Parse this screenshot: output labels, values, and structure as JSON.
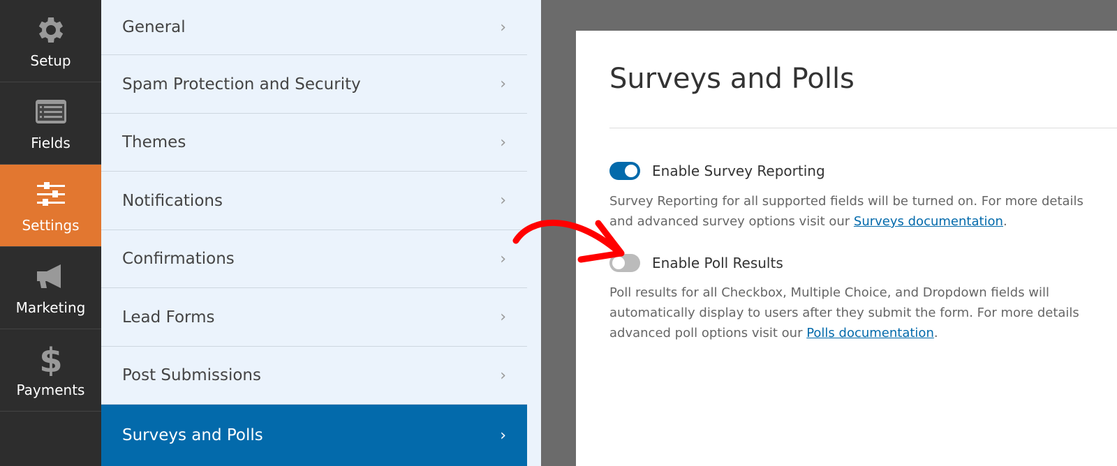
{
  "sidebar": {
    "items": [
      {
        "label": "Setup",
        "icon": "gear-icon"
      },
      {
        "label": "Fields",
        "icon": "list-icon"
      },
      {
        "label": "Settings",
        "icon": "sliders-icon",
        "active": true
      },
      {
        "label": "Marketing",
        "icon": "megaphone-icon"
      },
      {
        "label": "Payments",
        "icon": "dollar-icon"
      }
    ]
  },
  "menu": {
    "items": [
      "General",
      "Spam Protection and Security",
      "Themes",
      "Notifications",
      "Confirmations",
      "Lead Forms",
      "Post Submissions",
      "Surveys and Polls"
    ],
    "active": "Surveys and Polls"
  },
  "panel": {
    "title": "Surveys and Polls",
    "survey": {
      "label": "Enable Survey Reporting",
      "enabled": true,
      "desc": "Survey Reporting for all supported fields will be turned on. For more details and advanced survey options visit our ",
      "link": "Surveys documentation",
      "end": "."
    },
    "poll": {
      "label": "Enable Poll Results",
      "enabled": false,
      "desc": "Poll results for all Checkbox, Multiple Choice, and Dropdown fields will automatically display to users after they submit the form. For more details advanced poll options visit our ",
      "link": "Polls documentation",
      "end": "."
    }
  },
  "colors": {
    "accent": "#036aab",
    "active_sidebar": "#e27730",
    "annotation_arrow": "#ff0000"
  }
}
